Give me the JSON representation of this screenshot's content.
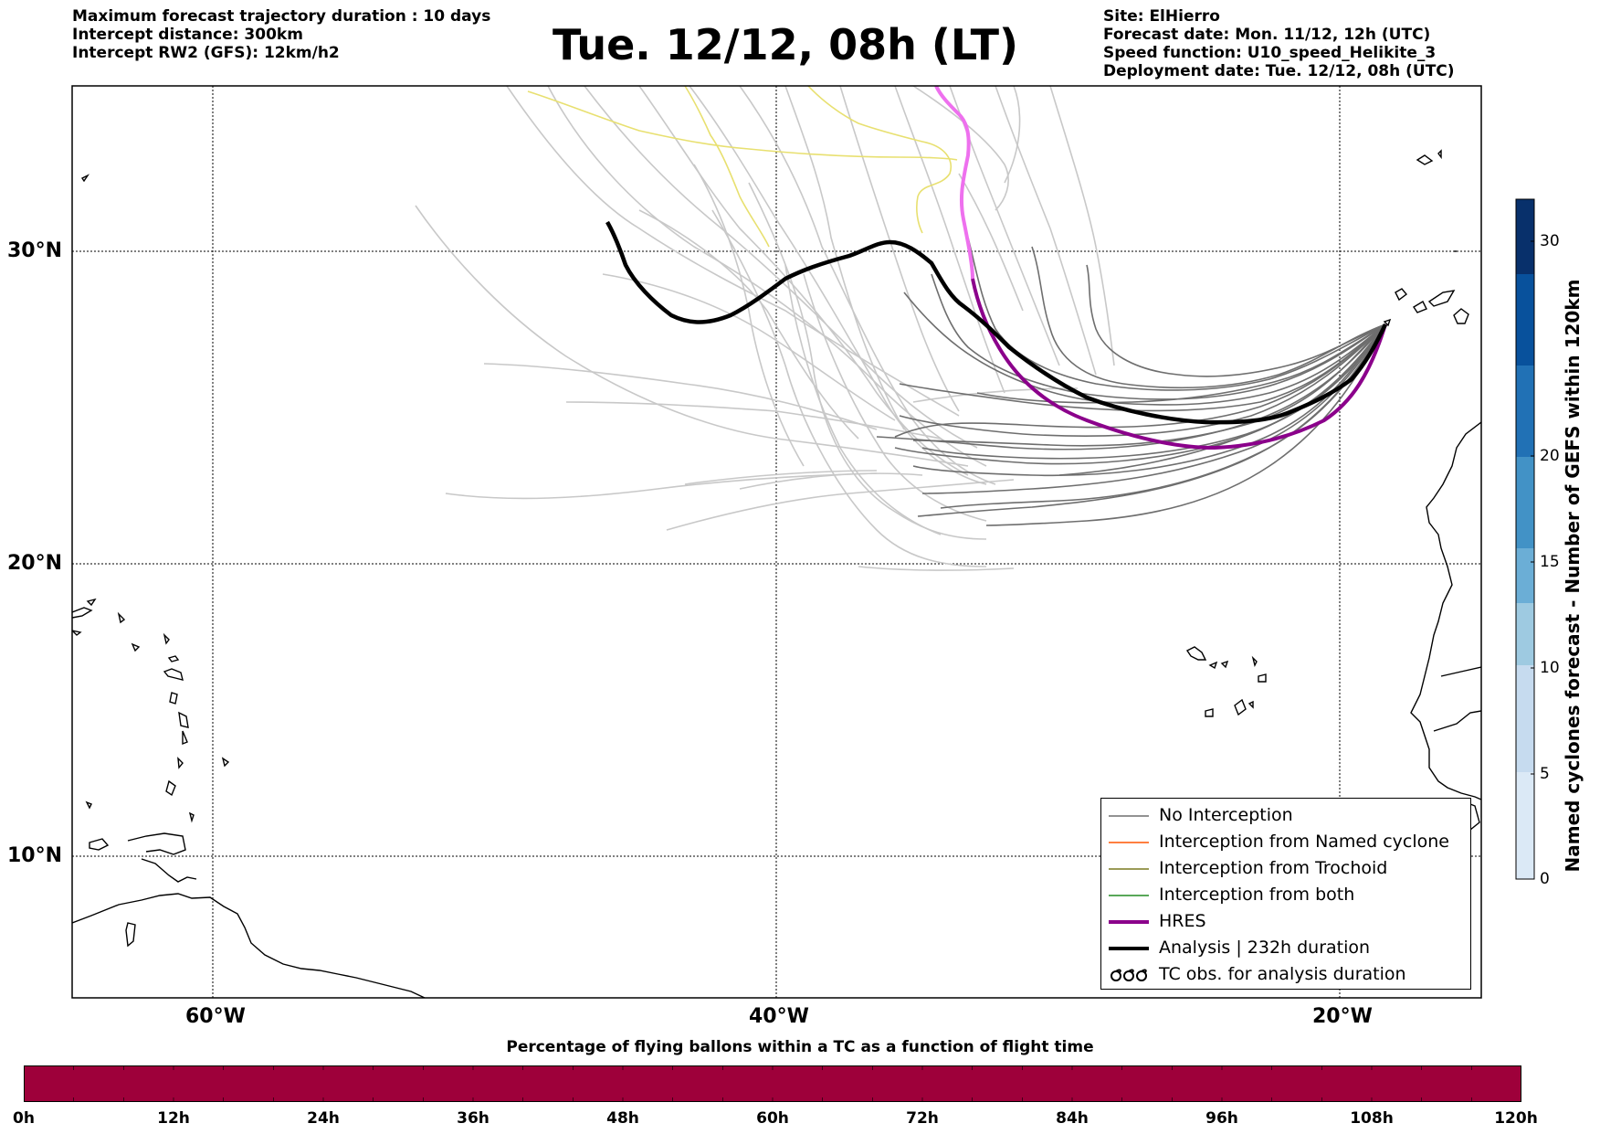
{
  "header_left": [
    "Maximum forecast trajectory duration : 10 days",
    "Intercept distance: 300km",
    "Intercept RW2 (GFS):  12km/h2"
  ],
  "title": "Tue. 12/12, 08h (LT)",
  "header_right": [
    "Site: ElHierro",
    "Forecast date: Mon. 11/12, 12h (UTC)",
    "Speed function: U10_speed_Helikite_3",
    "Deployment date: Tue. 12/12, 08h (UTC)"
  ],
  "map": {
    "lat_labels": [
      "30°N",
      "20°N",
      "10°N"
    ],
    "lon_labels": [
      "60°W",
      "40°W",
      "20°W"
    ],
    "colors": {
      "ensemble_light": "#c8c8c8",
      "ensemble_dark": "#6e6e6e",
      "trochoid_yellow": "#e8e070",
      "hres": "#8b008b",
      "hres_light": "#ee70ee",
      "analysis": "#000000",
      "bottom_bar": "#9e003a"
    }
  },
  "legend": {
    "items": [
      {
        "label": "No Interception",
        "color": "#6e6e6e",
        "style": "thin"
      },
      {
        "label": "Interception from Named cyclone",
        "color": "#ff5500",
        "style": "thin"
      },
      {
        "label": "Interception from Trochoid",
        "color": "#7a7a20",
        "style": "thin"
      },
      {
        "label": "Interception from both",
        "color": "#228b22",
        "style": "thin"
      },
      {
        "label": "HRES",
        "color": "#8b008b",
        "style": "thick"
      },
      {
        "label": "Analysis | 232h duration",
        "color": "#000000",
        "style": "thick"
      },
      {
        "label": "TC obs. for analysis duration",
        "color": "#000000",
        "style": "symbol"
      }
    ]
  },
  "colorbar_right": {
    "label": "Named cyclones forecast - Number of GEFS within 120km",
    "ticks": [
      "0",
      "5",
      "10",
      "15",
      "20",
      "30"
    ],
    "colors": [
      "#dbe9f6",
      "#c6dbef",
      "#9ecae1",
      "#6baed6",
      "#4292c6",
      "#2171b5",
      "#08519c",
      "#08306b"
    ]
  },
  "colorbar_bottom": {
    "label": "Percentage of flying ballons within a TC as a function of flight time",
    "ticks": [
      "0h",
      "12h",
      "24h",
      "36h",
      "48h",
      "60h",
      "72h",
      "84h",
      "96h",
      "108h",
      "120h"
    ]
  }
}
